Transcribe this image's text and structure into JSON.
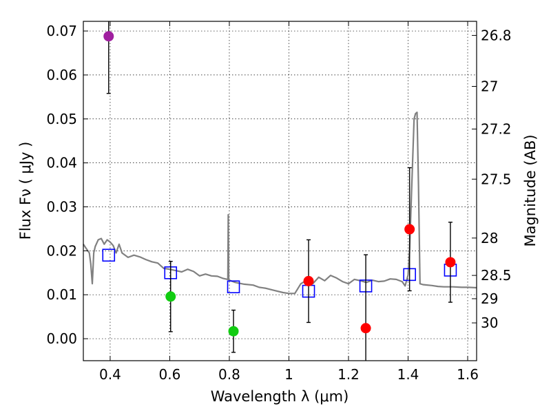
{
  "chart_data": {
    "type": "scatter",
    "title": "",
    "xlabel": "Wavelength  λ (μm)",
    "ylabel": "Flux  Fν  ( μJy )",
    "ylabel_right": "Magnitude (AB)",
    "xlim": [
      0.31,
      1.63
    ],
    "ylim": [
      -0.005,
      0.0722
    ],
    "grid": true,
    "x_ticks": [
      {
        "value": 0.4,
        "label": "0.4"
      },
      {
        "value": 0.6,
        "label": "0.6"
      },
      {
        "value": 0.8,
        "label": "0.8"
      },
      {
        "value": 1.0,
        "label": "1"
      },
      {
        "value": 1.2,
        "label": "1.2"
      },
      {
        "value": 1.4,
        "label": "1.4"
      },
      {
        "value": 1.6,
        "label": "1.6"
      }
    ],
    "y_ticks": [
      {
        "value": 0.0,
        "label": "0.00"
      },
      {
        "value": 0.01,
        "label": "0.01"
      },
      {
        "value": 0.02,
        "label": "0.02"
      },
      {
        "value": 0.03,
        "label": "0.03"
      },
      {
        "value": 0.04,
        "label": "0.04"
      },
      {
        "value": 0.05,
        "label": "0.05"
      },
      {
        "value": 0.06,
        "label": "0.06"
      },
      {
        "value": 0.07,
        "label": "0.07"
      }
    ],
    "mag_ticks": [
      {
        "flux": 0.069,
        "label": "26.8"
      },
      {
        "flux": 0.0574,
        "label": "27"
      },
      {
        "flux": 0.0477,
        "label": "27.2"
      },
      {
        "flux": 0.0363,
        "label": "27.5"
      },
      {
        "flux": 0.0229,
        "label": "28"
      },
      {
        "flux": 0.0144,
        "label": "28.5"
      },
      {
        "flux": 0.0091,
        "label": "29"
      },
      {
        "flux": 0.0036,
        "label": "30"
      }
    ],
    "sed_model": {
      "name": "model SED",
      "color": "#808080",
      "x": [
        0.31,
        0.32,
        0.33,
        0.335,
        0.34,
        0.345,
        0.35,
        0.36,
        0.37,
        0.38,
        0.39,
        0.4,
        0.41,
        0.42,
        0.425,
        0.43,
        0.44,
        0.46,
        0.48,
        0.5,
        0.52,
        0.54,
        0.56,
        0.58,
        0.6,
        0.62,
        0.64,
        0.66,
        0.68,
        0.7,
        0.72,
        0.74,
        0.76,
        0.78,
        0.795,
        0.7965,
        0.798,
        0.8,
        0.82,
        0.85,
        0.88,
        0.9,
        0.92,
        0.95,
        0.98,
        1.0,
        1.02,
        1.04,
        1.06,
        1.08,
        1.1,
        1.12,
        1.14,
        1.16,
        1.18,
        1.2,
        1.22,
        1.24,
        1.26,
        1.28,
        1.3,
        1.32,
        1.34,
        1.36,
        1.38,
        1.39,
        1.4,
        1.405,
        1.41,
        1.42,
        1.425,
        1.43,
        1.435,
        1.44,
        1.45,
        1.48,
        1.5,
        1.52,
        1.55,
        1.58,
        1.6,
        1.63
      ],
      "y": [
        0.0215,
        0.0205,
        0.0195,
        0.017,
        0.0125,
        0.0195,
        0.021,
        0.0225,
        0.0228,
        0.0215,
        0.0225,
        0.022,
        0.0212,
        0.0195,
        0.0205,
        0.0215,
        0.0195,
        0.0185,
        0.019,
        0.0186,
        0.018,
        0.0175,
        0.0172,
        0.016,
        0.0158,
        0.0155,
        0.0152,
        0.0158,
        0.0153,
        0.0143,
        0.0147,
        0.0143,
        0.0142,
        0.0137,
        0.0135,
        0.0282,
        0.0135,
        0.0133,
        0.0128,
        0.0124,
        0.0122,
        0.0117,
        0.0115,
        0.011,
        0.0105,
        0.0103,
        0.0103,
        0.0125,
        0.0133,
        0.0125,
        0.014,
        0.0132,
        0.0144,
        0.0138,
        0.013,
        0.0125,
        0.0135,
        0.0132,
        0.0128,
        0.0133,
        0.013,
        0.0131,
        0.0136,
        0.0135,
        0.013,
        0.012,
        0.0145,
        0.02,
        0.03,
        0.05,
        0.0512,
        0.0515,
        0.035,
        0.0125,
        0.0123,
        0.0121,
        0.0119,
        0.0118,
        0.0118,
        0.0117,
        0.0117,
        0.0116
      ]
    },
    "series": [
      {
        "name": "purple point",
        "marker": "circle",
        "color": "#a020a0",
        "points": [
          {
            "x": 0.395,
            "y": 0.0688,
            "err_lo": 0.013,
            "err_hi": 0.013
          }
        ]
      },
      {
        "name": "green points",
        "marker": "circle",
        "color": "#11cc11",
        "points": [
          {
            "x": 0.603,
            "y": 0.0096,
            "err_lo": 0.008,
            "err_hi": 0.008
          },
          {
            "x": 0.814,
            "y": 0.0017,
            "err_lo": 0.0048,
            "err_hi": 0.0048
          }
        ]
      },
      {
        "name": "red points",
        "marker": "circle",
        "color": "#ff0000",
        "points": [
          {
            "x": 1.066,
            "y": 0.0131,
            "err_lo": 0.0094,
            "err_hi": 0.0094
          },
          {
            "x": 1.258,
            "y": 0.0024,
            "err_lo": 0.0167,
            "err_hi": 0.0167
          },
          {
            "x": 1.405,
            "y": 0.0249,
            "err_lo": 0.014,
            "err_hi": 0.014
          },
          {
            "x": 1.542,
            "y": 0.0174,
            "err_lo": 0.0091,
            "err_hi": 0.0091
          }
        ]
      },
      {
        "name": "model photometry",
        "marker": "square-open",
        "color": "#0000ff",
        "points": [
          {
            "x": 0.395,
            "y": 0.019
          },
          {
            "x": 0.603,
            "y": 0.015
          },
          {
            "x": 0.814,
            "y": 0.0118
          },
          {
            "x": 1.066,
            "y": 0.0108
          },
          {
            "x": 1.258,
            "y": 0.012
          },
          {
            "x": 1.405,
            "y": 0.0146
          },
          {
            "x": 1.542,
            "y": 0.0156
          }
        ]
      }
    ]
  }
}
